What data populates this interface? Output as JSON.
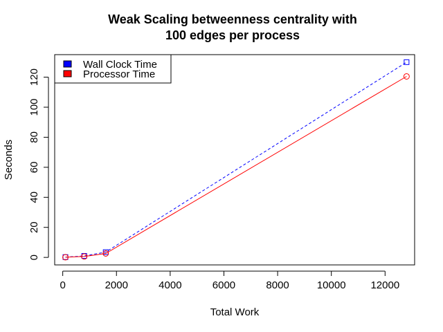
{
  "chart_data": {
    "type": "line",
    "title": "Weak Scaling betweenness centrality with",
    "subtitle": "100 edges per process",
    "xlabel": "Total Work",
    "ylabel": "Seconds",
    "xlim": [
      -300,
      13100
    ],
    "ylim": [
      -5,
      135
    ],
    "x_ticks": [
      0,
      2000,
      4000,
      6000,
      8000,
      10000,
      12000
    ],
    "x_tick_labels": [
      "0",
      "2000",
      "4000",
      "6000",
      "8000",
      "10000",
      "12000"
    ],
    "y_ticks": [
      0,
      20,
      40,
      60,
      80,
      100,
      120
    ],
    "y_tick_labels": [
      "0",
      "20",
      "40",
      "60",
      "80",
      "100",
      "120"
    ],
    "grid": false,
    "legend_position": "top-left",
    "series": [
      {
        "name": "Wall Clock Time",
        "color": "#0000ff",
        "line_style": "dashed",
        "marker": "square",
        "x": [
          100,
          800,
          1600,
          12800
        ],
        "y": [
          0.2,
          1.0,
          3.5,
          130.0
        ]
      },
      {
        "name": "Processor Time",
        "color": "#ff0000",
        "line_style": "solid",
        "marker": "circle",
        "x": [
          100,
          800,
          1600,
          12800
        ],
        "y": [
          0.1,
          0.6,
          2.6,
          120.5
        ]
      }
    ]
  }
}
